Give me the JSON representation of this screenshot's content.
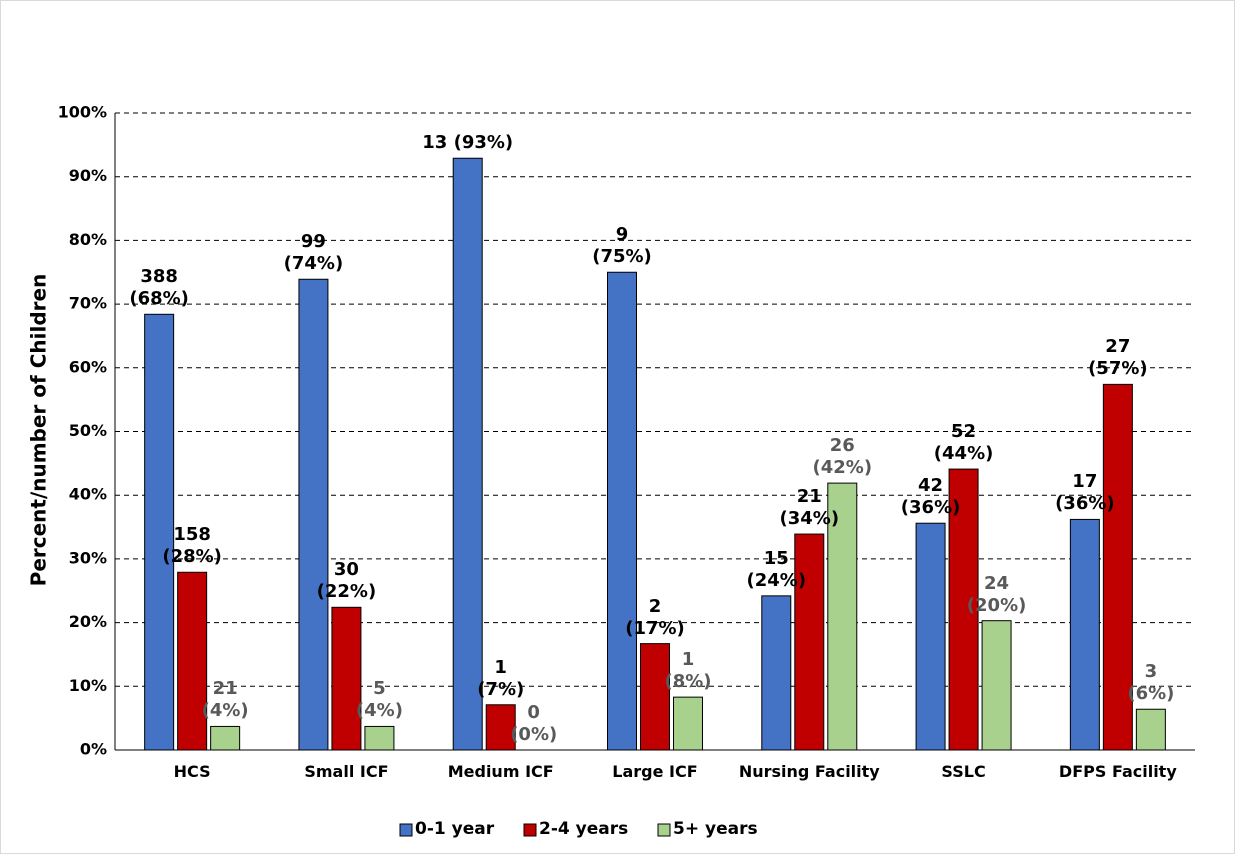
{
  "chart_data": {
    "type": "bar",
    "y_label": "Percent/number of Children",
    "categories": [
      "HCS",
      "Small ICF",
      "Medium ICF",
      "Large ICF",
      "Nursing Facility",
      "SSLC",
      "DFPS Facility"
    ],
    "series": [
      {
        "name": "0-1 year",
        "color": "#4472c4",
        "label_color": "#000000",
        "values": [
          68.4,
          73.9,
          92.9,
          75,
          24.2,
          35.6,
          36.2
        ],
        "value_labels": [
          "388\n(68%)",
          "99\n(74%)",
          "13 (93%)",
          "9\n(75%)",
          "15\n(24%)",
          "42\n(36%)",
          "17\n(36%)"
        ]
      },
      {
        "name": "2-4 years",
        "color": "#c00000",
        "label_color": "#000000",
        "values": [
          27.9,
          22.4,
          7.1,
          16.7,
          33.9,
          44.1,
          57.4
        ],
        "value_labels": [
          "158\n(28%)",
          "30\n(22%)",
          "1\n(7%)",
          "2\n(17%)",
          "21\n(34%)",
          "52\n(44%)",
          "27\n(57%)"
        ]
      },
      {
        "name": "5+ years",
        "color": "#a9d18e",
        "label_color": "#595959",
        "values": [
          3.7,
          3.7,
          0,
          8.3,
          41.9,
          20.3,
          6.4
        ],
        "value_labels": [
          "21\n(4%)",
          "5\n(4%)",
          "0\n(0%)",
          "1\n(8%)",
          "26\n(42%)",
          "24\n(20%)",
          "3\n(6%)"
        ]
      }
    ],
    "ylim": [
      0,
      100
    ],
    "yticks": [
      {
        "value": 0,
        "label": "0%"
      },
      {
        "value": 10,
        "label": "10%"
      },
      {
        "value": 20,
        "label": "20%"
      },
      {
        "value": 30,
        "label": "30%"
      },
      {
        "value": 40,
        "label": "40%"
      },
      {
        "value": 50,
        "label": "50%"
      },
      {
        "value": 60,
        "label": "60%"
      },
      {
        "value": 70,
        "label": "70%"
      },
      {
        "value": 80,
        "label": "80%"
      },
      {
        "value": 90,
        "label": "90%"
      },
      {
        "value": 100,
        "label": "100%"
      }
    ],
    "grid": true,
    "legend": "bottom"
  }
}
